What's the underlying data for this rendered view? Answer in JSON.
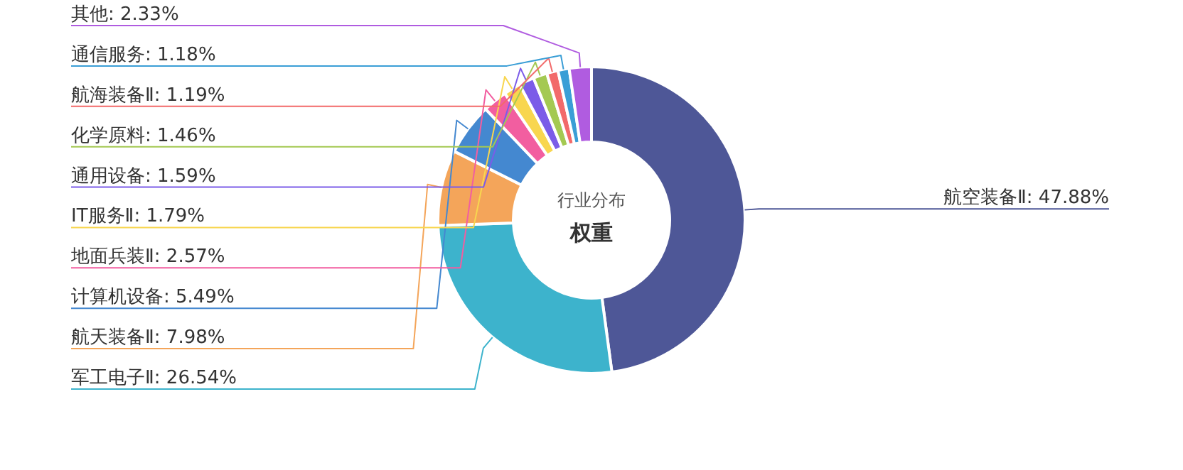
{
  "chart_data": {
    "type": "donut",
    "title": "权重",
    "subtitle": "行业分布",
    "categories": [
      "航空装备Ⅱ",
      "军工电子Ⅱ",
      "航天装备Ⅱ",
      "计算机设备",
      "地面兵装Ⅱ",
      "IT服务Ⅱ",
      "通用设备",
      "化学原料",
      "航海装备Ⅱ",
      "通信服务",
      "其他"
    ],
    "values": [
      47.88,
      26.54,
      7.98,
      5.49,
      2.57,
      1.79,
      1.59,
      1.46,
      1.19,
      1.18,
      2.33
    ],
    "colors": [
      "#4e5797",
      "#3db3cc",
      "#f4a55a",
      "#4488d0",
      "#f25ea0",
      "#f8d64f",
      "#7b5ce8",
      "#a4c952",
      "#f26a6a",
      "#3a9ed6",
      "#b05ce0"
    ],
    "value_labels": [
      ": 47.88%",
      ": 26.54%",
      ": 7.98%",
      ": 5.49%",
      ": 2.57%",
      ": 1.79%",
      ": 1.59%",
      ": 1.46%",
      ": 1.19%",
      ": 1.18%",
      ": 2.33%"
    ]
  }
}
